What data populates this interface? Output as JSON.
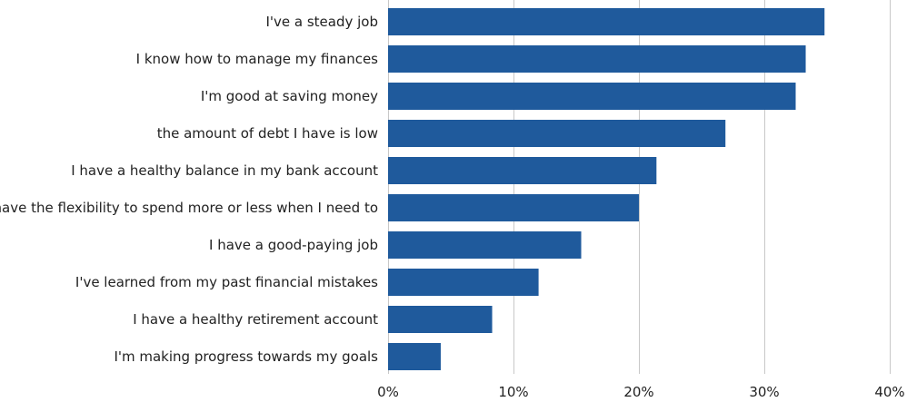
{
  "chart_data": {
    "type": "bar",
    "orientation": "horizontal",
    "title": "",
    "xlabel": "",
    "ylabel": "",
    "categories": [
      "I've a steady job",
      "I know how to manage my finances",
      "I'm good at saving money",
      "the amount of debt I have is low",
      "I have a healthy balance in my bank account",
      "I have the flexibility to spend more or less when I need to",
      "I have a good-paying job",
      "I've learned from my past financial mistakes",
      "I have a healthy retirement account",
      "I'm making progress towards my goals"
    ],
    "values": [
      34.8,
      33.3,
      32.5,
      26.9,
      21.4,
      20.0,
      15.4,
      12.0,
      8.3,
      4.2
    ],
    "xlim": [
      0,
      40
    ],
    "ticks": [
      0,
      10,
      20,
      30,
      40
    ],
    "tick_labels": [
      "0%",
      "10%",
      "20%",
      "30%",
      "40%"
    ],
    "grid": true,
    "legend": "none",
    "bar_color": "#1f5a9c",
    "grid_color": "#c8c8c8"
  }
}
